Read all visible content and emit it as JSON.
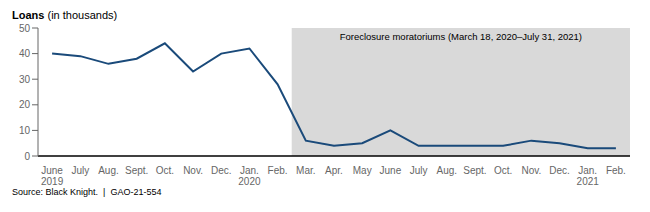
{
  "chart_data": {
    "type": "line",
    "ylabel": "Loans (in thousands)",
    "categories": [
      "June\n2019",
      "July",
      "Aug.",
      "Sept.",
      "Oct.",
      "Nov.",
      "Dec.",
      "Jan.\n2020",
      "Feb.",
      "Mar.",
      "Apr.",
      "May",
      "June",
      "July",
      "Aug.",
      "Sept.",
      "Oct.",
      "Nov.",
      "Dec.",
      "Jan.\n2021",
      "Feb."
    ],
    "values": [
      40,
      39,
      36,
      38,
      44,
      33,
      40,
      42,
      28,
      6,
      4,
      5,
      10,
      4,
      4,
      4,
      4,
      6,
      5,
      3,
      3
    ],
    "color": "#1a4a7a",
    "ylim": [
      0,
      50
    ],
    "yticks": [
      0,
      10,
      20,
      30,
      40,
      50
    ],
    "grid": false,
    "annotations": [
      {
        "text": "Foreclosure moratoriums (March 18, 2020–July 31, 2021)",
        "start": "Mar.",
        "color": "#d9d9d9"
      }
    ],
    "source": "Source: Black Knight.  |  GAO-21-554"
  }
}
